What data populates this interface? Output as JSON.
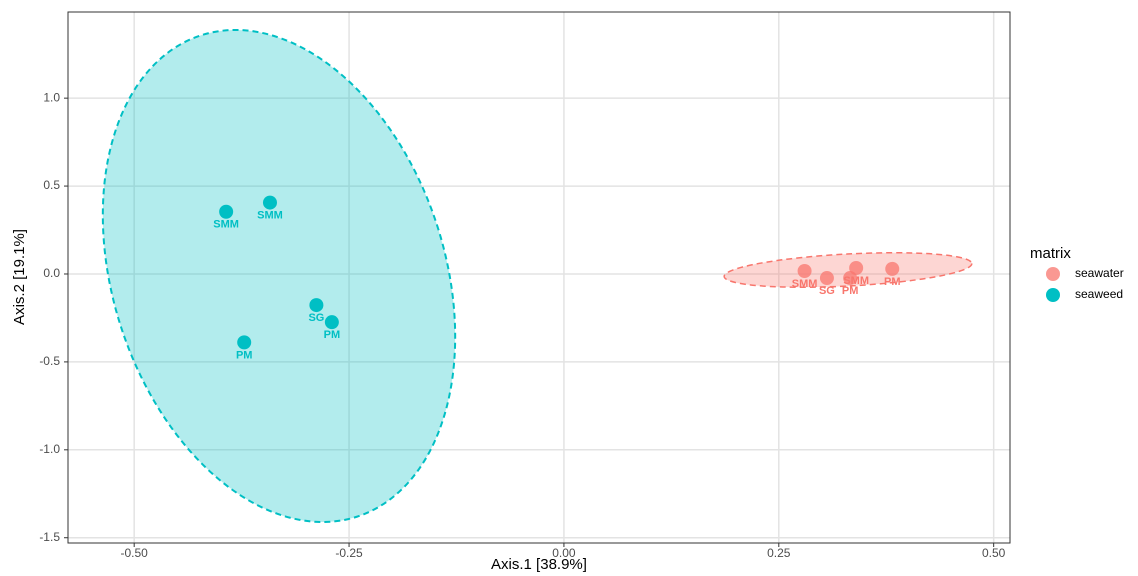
{
  "chart_data": {
    "type": "scatter",
    "x_label": "Axis.1   [38.9%]",
    "y_label": "Axis.2   [19.1%]",
    "legend_title": "matrix",
    "legend_position": "right",
    "grid": true,
    "xlim": [
      -0.577,
      0.519
    ],
    "ylim": [
      -1.53,
      1.49
    ],
    "xticks": [
      {
        "value": -0.5,
        "label": "-0.50"
      },
      {
        "value": -0.25,
        "label": "-0.25"
      },
      {
        "value": 0,
        "label": "0.00"
      },
      {
        "value": 0.25,
        "label": "0.25"
      },
      {
        "value": 0.5,
        "label": "0.50"
      }
    ],
    "yticks": [
      {
        "value": 1,
        "label": "1.0"
      },
      0.5,
      {
        "value": 0,
        "label": "0.0"
      },
      -0.5,
      {
        "value": -1,
        "label": "-1.0"
      },
      -1.5
    ],
    "series": [
      {
        "name": "seawater",
        "color": "#f8766d",
        "x": [
          0.28,
          0.306,
          0.333,
          0.34,
          0.382
        ],
        "values": [
          0.017,
          -0.023,
          -0.023,
          0.034,
          0.029
        ],
        "labels": [
          "SMM",
          "SG",
          "PM",
          "SMM",
          "PM"
        ]
      },
      {
        "name": "seaweed",
        "color": "#00bfc4",
        "x": [
          -0.393,
          -0.342,
          -0.288,
          -0.27,
          -0.372
        ],
        "values": [
          0.354,
          0.406,
          -0.177,
          -0.274,
          -0.389
        ],
        "labels": [
          "SMM",
          "SMM",
          "SG",
          "PM",
          "PM"
        ]
      }
    ]
  }
}
